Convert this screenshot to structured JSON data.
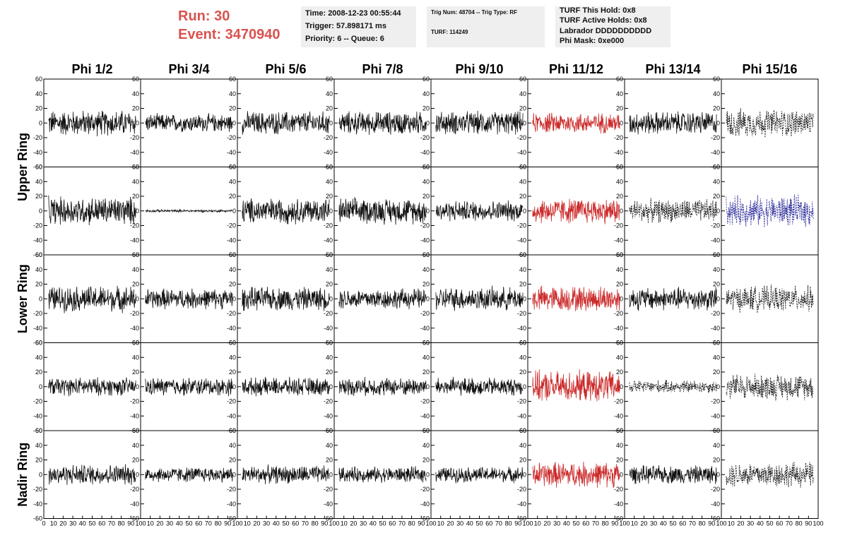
{
  "header": {
    "run_label": "Run:    30",
    "event_label": "Event: 3470940",
    "box1": [
      "Time: 2008-12-23 00:55:44",
      "Trigger: 57.898171 ms",
      "Priority: 6 -- Queue: 6"
    ],
    "box2": [
      "Trig Num: 48704 -- Trig Type: RF",
      "TURF: 114249"
    ],
    "box3": [
      "TURF This Hold: 0x8",
      "TURF Active Holds: 0x8",
      "Labrador DDDDDDDDDD",
      "Phi Mask: 0xe000"
    ]
  },
  "chart_data": {
    "type": "line",
    "columns": [
      "Phi 1/2",
      "Phi 3/4",
      "Phi 5/6",
      "Phi 7/8",
      "Phi 9/10",
      "Phi 11/12",
      "Phi 13/14",
      "Phi 15/16"
    ],
    "rings": [
      "Upper Ring",
      "Lower Ring",
      "Nadir Ring"
    ],
    "xlim": [
      0,
      100
    ],
    "ylim": [
      -60,
      60
    ],
    "x_ticks": [
      0,
      10,
      20,
      30,
      40,
      50,
      60,
      70,
      80,
      90,
      100
    ],
    "y_ticks": [
      -60,
      -40,
      -20,
      0,
      20,
      40,
      60
    ],
    "rows": 5,
    "grid": false,
    "row_amplitudes": [
      [
        20,
        14,
        18,
        18,
        18,
        16,
        18,
        22
      ],
      [
        22,
        2,
        20,
        20,
        16,
        20,
        18,
        24
      ],
      [
        20,
        16,
        18,
        16,
        18,
        20,
        18,
        20
      ],
      [
        14,
        14,
        14,
        14,
        14,
        24,
        10,
        20
      ],
      [
        16,
        12,
        14,
        12,
        12,
        20,
        14,
        20
      ]
    ],
    "styles": [
      [
        "solid",
        "solid",
        "solid",
        "solid",
        "solid",
        "red",
        "solid",
        "dash"
      ],
      [
        "solid",
        "solid",
        "solid",
        "solid",
        "solid",
        "red",
        "dash",
        "bluedash"
      ],
      [
        "solid",
        "solid",
        "solid",
        "solid",
        "solid",
        "red",
        "solid",
        "dash"
      ],
      [
        "solid",
        "solid",
        "solid",
        "solid",
        "solid",
        "red",
        "dash",
        "dash"
      ],
      [
        "solid",
        "solid",
        "solid",
        "solid",
        "solid",
        "red",
        "solid",
        "dash"
      ]
    ],
    "colors": {
      "trace": "#111111",
      "highlight": "#cc2a2a",
      "blue": "#2a2a9a"
    }
  }
}
